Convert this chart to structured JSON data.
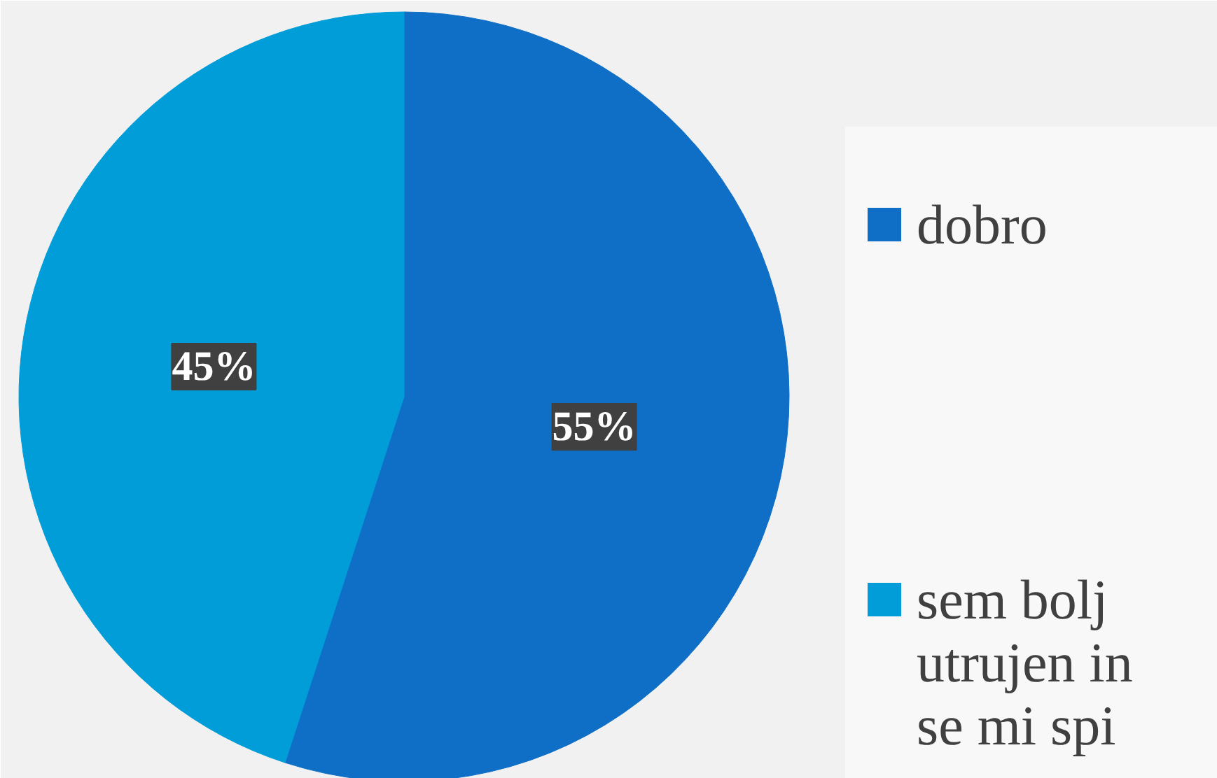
{
  "chart_data": {
    "type": "pie",
    "categories": [
      "dobro",
      "sem bolj utrujen in se mi spi"
    ],
    "values": [
      55,
      45
    ],
    "colors": [
      "#0f6fc6",
      "#009dd9"
    ],
    "value_labels": [
      "55%",
      "45%"
    ],
    "legend": "right"
  }
}
